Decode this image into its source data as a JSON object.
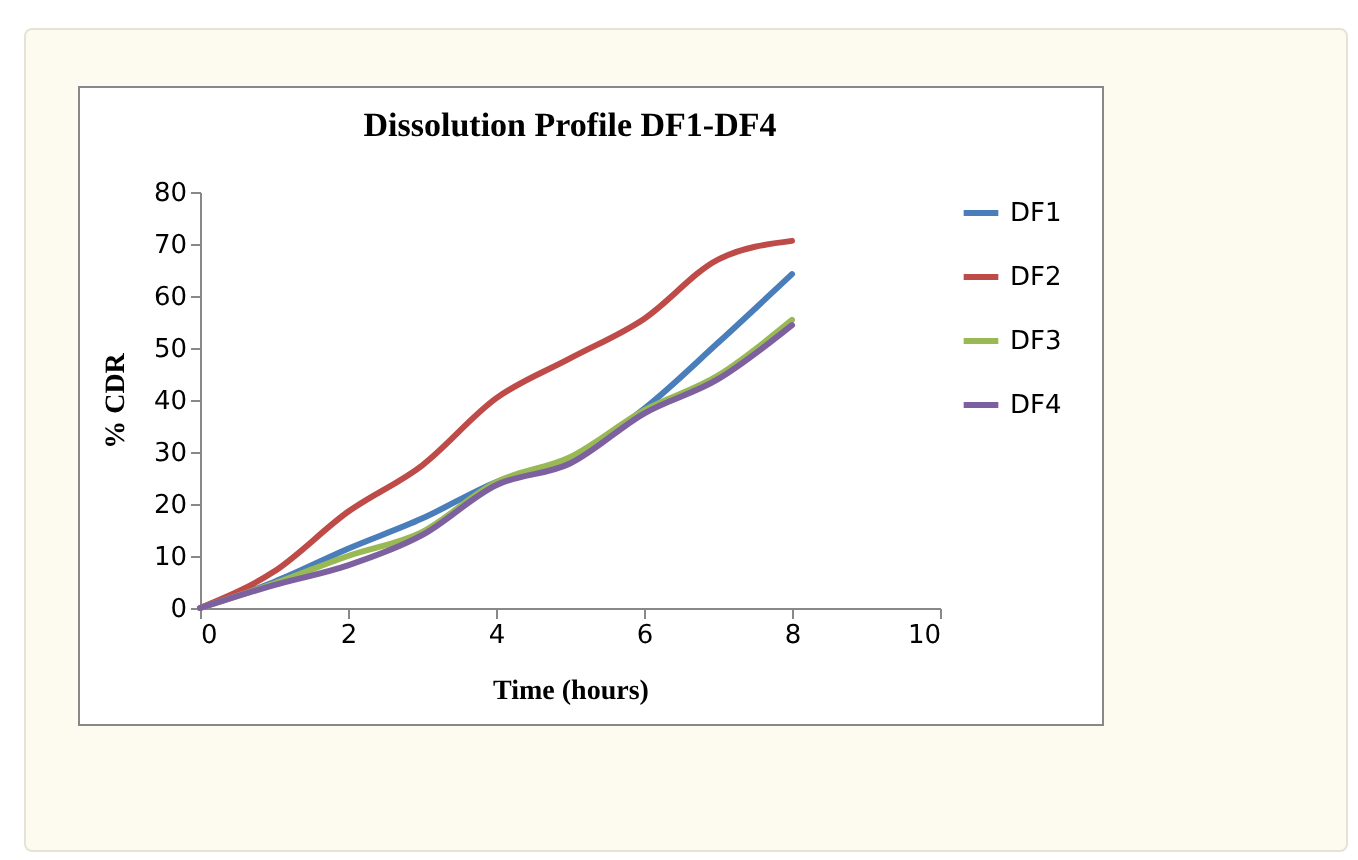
{
  "chart_data": {
    "type": "line",
    "title": "Dissolution Profile DF1-DF4",
    "xlabel": "Time (hours)",
    "ylabel": "% CDR",
    "x": [
      0,
      1,
      2,
      3,
      4,
      5,
      6,
      7,
      8
    ],
    "series": [
      {
        "name": "DF1",
        "color": "#4a7ebb",
        "values": [
          0,
          5,
          11.4,
          17.2,
          24.2,
          28.7,
          38.3,
          51,
          64.2
        ]
      },
      {
        "name": "DF2",
        "color": "#be4b48",
        "values": [
          0,
          7,
          18.5,
          27.4,
          40.3,
          48,
          55.6,
          67,
          70.6
        ]
      },
      {
        "name": "DF3",
        "color": "#98b954",
        "values": [
          0,
          4.7,
          10,
          14.6,
          24.2,
          29,
          38,
          44.7,
          55.4
        ]
      },
      {
        "name": "DF4",
        "color": "#7d60a0",
        "values": [
          0,
          4.4,
          8.2,
          14,
          23.6,
          27.8,
          37.4,
          44,
          54.4
        ]
      }
    ],
    "xlim": [
      0,
      10
    ],
    "xticks": [
      0,
      2,
      4,
      6,
      8,
      10
    ],
    "ylim": [
      0,
      80
    ],
    "yticks": [
      0,
      10,
      20,
      30,
      40,
      50,
      60,
      70,
      80
    ],
    "grid": false,
    "legend": "right",
    "marker": "none",
    "line_style": "solid"
  }
}
